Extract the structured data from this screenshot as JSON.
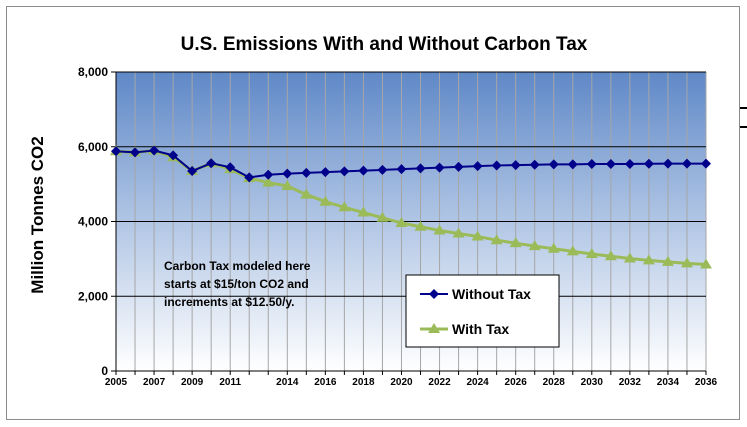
{
  "chart_data": {
    "type": "line",
    "title": "U.S. Emissions With and Without  Carbon Tax",
    "xlabel": "",
    "ylabel": "Million Tonnes CO2",
    "ylim": [
      0,
      8000
    ],
    "yticks": [
      "0",
      "2,000",
      "4,000",
      "6,000",
      "8,000"
    ],
    "ytick_values": [
      0,
      2000,
      4000,
      6000,
      8000
    ],
    "xlim": [
      2005,
      2036
    ],
    "xtick_labels": [
      "2005",
      "2007",
      "2009",
      "2011",
      "2014",
      "2016",
      "2018",
      "2020",
      "2022",
      "2024",
      "2026",
      "2028",
      "2030",
      "2032",
      "2034",
      "2036"
    ],
    "xtick_values": [
      2005,
      2007,
      2009,
      2011,
      2014,
      2016,
      2018,
      2020,
      2022,
      2024,
      2026,
      2028,
      2030,
      2032,
      2034,
      2036
    ],
    "x": [
      2005,
      2006,
      2007,
      2008,
      2009,
      2010,
      2011,
      2012,
      2013,
      2014,
      2015,
      2016,
      2017,
      2018,
      2019,
      2020,
      2021,
      2022,
      2023,
      2024,
      2025,
      2026,
      2027,
      2028,
      2029,
      2030,
      2031,
      2032,
      2033,
      2034,
      2035,
      2036
    ],
    "series": [
      {
        "name": "Without Tax",
        "color": "#00008b",
        "marker": "diamond",
        "values": [
          5880,
          5850,
          5900,
          5770,
          5350,
          5560,
          5450,
          5180,
          5250,
          5280,
          5300,
          5320,
          5340,
          5360,
          5380,
          5400,
          5420,
          5440,
          5460,
          5480,
          5500,
          5510,
          5520,
          5530,
          5530,
          5540,
          5540,
          5540,
          5545,
          5550,
          5550,
          5550
        ]
      },
      {
        "name": "With Tax",
        "color": "#9bbb59",
        "marker": "triangle",
        "values": [
          5880,
          5850,
          5900,
          5720,
          5350,
          5560,
          5400,
          5160,
          5040,
          4950,
          4720,
          4530,
          4380,
          4240,
          4100,
          3960,
          3860,
          3760,
          3680,
          3600,
          3500,
          3420,
          3340,
          3270,
          3200,
          3130,
          3070,
          3010,
          2960,
          2920,
          2880,
          2850
        ]
      }
    ],
    "grid": true,
    "legend_position": "lower-right",
    "annotation": {
      "lines": [
        "Carbon Tax modeled here",
        "starts at $15/ton CO2 and",
        "increments at $12.50/y."
      ]
    },
    "plot_background": "#5f88c7"
  }
}
